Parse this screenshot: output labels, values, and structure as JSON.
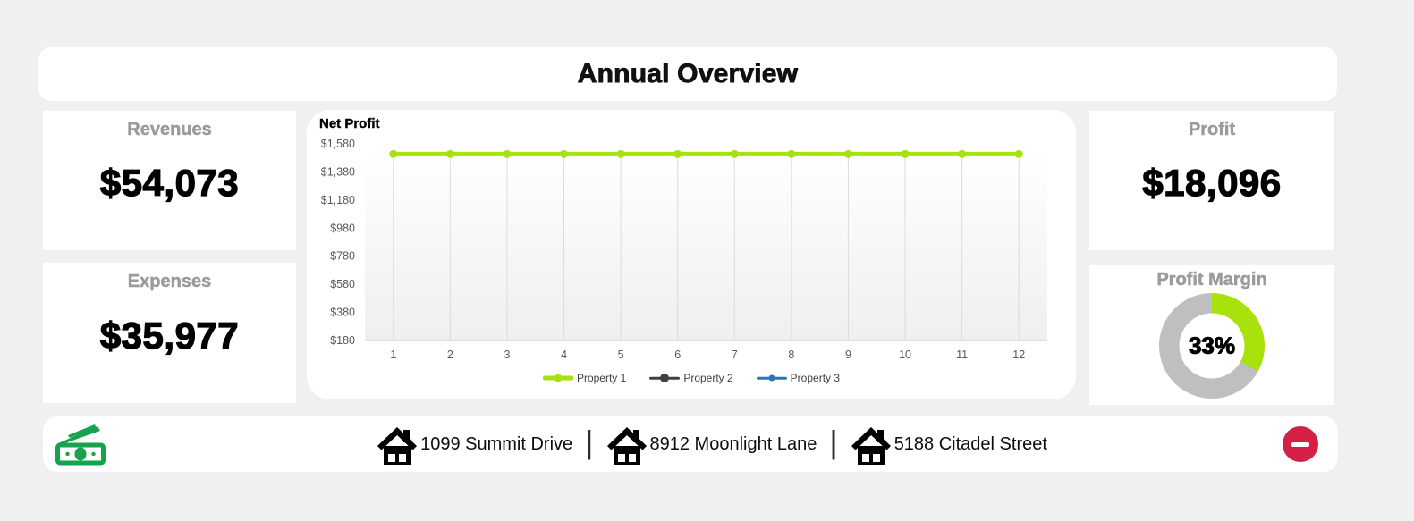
{
  "page": {
    "title": "Annual Overview",
    "background": "#f0f0f0"
  },
  "cards": {
    "revenues": {
      "label": "Revenues",
      "value": "$54,073"
    },
    "expenses": {
      "label": "Expenses",
      "value": "$35,977"
    },
    "profit": {
      "label": "Profit",
      "value": "$18,096"
    },
    "profit_margin": {
      "label": "Profit Margin",
      "value": "33%",
      "percent": 33
    }
  },
  "chart_data": {
    "type": "line",
    "title": "Net Profit",
    "x": [
      1,
      2,
      3,
      4,
      5,
      6,
      7,
      8,
      9,
      10,
      11,
      12
    ],
    "series": [
      {
        "name": "Property 1",
        "color": "#a8e10c",
        "line_width": 5,
        "marker_size": 4.5,
        "values": [
          1508,
          1508,
          1508,
          1508,
          1508,
          1508,
          1508,
          1508,
          1508,
          1508,
          1508,
          1508
        ]
      },
      {
        "name": "Property 2",
        "color": "#404040",
        "line_width": 2.5,
        "marker_size": 5,
        "values": []
      },
      {
        "name": "Property 3",
        "color": "#2e75b6",
        "line_width": 2.5,
        "marker_size": 3.5,
        "values": []
      }
    ],
    "ylim": [
      180,
      1580
    ],
    "ytick_labels": [
      "$180",
      "$380",
      "$580",
      "$780",
      "$980",
      "$1,180",
      "$1,380",
      "$1,580"
    ],
    "xlabel": "",
    "ylabel": "",
    "grid": "vertical",
    "legend_position": "bottom"
  },
  "footer": {
    "separator": "|",
    "properties": [
      {
        "address": "1099 Summit Drive"
      },
      {
        "address": "8912 Moonlight Lane"
      },
      {
        "address": "5188 Citadel Street"
      }
    ]
  },
  "colors": {
    "accent_green": "#a8e10c",
    "donut_gray": "#bfbfbf",
    "money_green": "#17a24d",
    "minus_red": "#d41f47",
    "label_gray": "#9b9b9b",
    "axis_text": "#595959",
    "gridline": "#dcdcdc"
  }
}
